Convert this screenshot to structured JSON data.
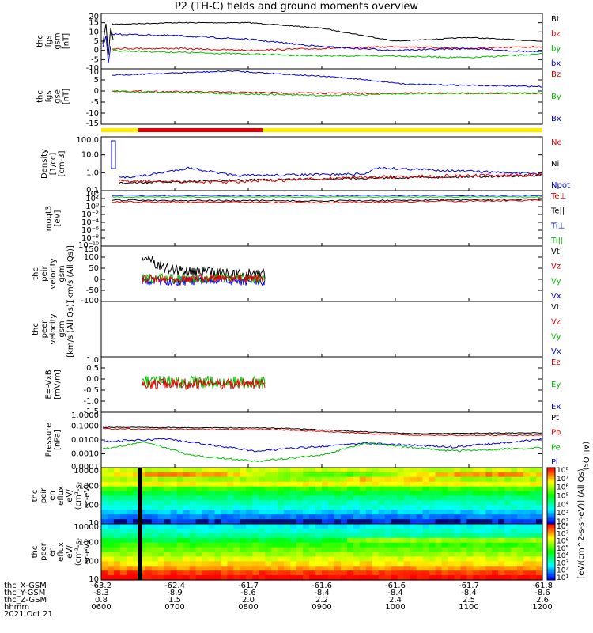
{
  "title": "P2 (TH-C) fields and ground moments overview",
  "colors": {
    "black": "#000000",
    "red": "#e00000",
    "green": "#00c000",
    "blue": "#0000e0"
  },
  "panels": [
    {
      "id": "fgs_gsm",
      "ylabel": [
        "thc",
        "fgs",
        "gsm",
        "[nT]"
      ],
      "ticks": [
        "20",
        "15",
        "10",
        "5",
        "0",
        "-5",
        "-10"
      ],
      "legend": [
        {
          "text": "Bt",
          "color": "#000000"
        },
        {
          "text": "bz",
          "color": "#e00000"
        },
        {
          "text": "by",
          "color": "#00c000"
        },
        {
          "text": "bx",
          "color": "#0000e0"
        }
      ]
    },
    {
      "id": "fgs_gse",
      "ylabel": [
        "thc",
        "fgs",
        "gse",
        "[nT]"
      ],
      "ticks": [
        "10",
        "5",
        "0",
        "-5",
        "-10",
        "-15"
      ],
      "legend": [
        {
          "text": "Bz",
          "color": "#e00000"
        },
        {
          "text": "By",
          "color": "#00c000"
        },
        {
          "text": "Bx",
          "color": "#0000e0"
        }
      ]
    },
    {
      "id": "density",
      "ylabel": [
        "Density",
        "[1/cc]",
        "[cm-3]"
      ],
      "ticks": [
        "100.0",
        "10.0",
        "1.0",
        "0.1"
      ],
      "legend": [
        {
          "text": "Ne",
          "color": "#e00000"
        },
        {
          "text": "Ni",
          "color": "#000000"
        },
        {
          "text": "Npot",
          "color": "#0000e0"
        }
      ]
    },
    {
      "id": "temperature",
      "ylabel": [
        "moqt3",
        "[eV]"
      ],
      "ticks": [
        "10⁴",
        "10²",
        "10⁰",
        "10⁻²",
        "10⁻⁴",
        "10⁻⁶",
        "10⁻⁸",
        "10⁻¹⁰"
      ],
      "legend": [
        {
          "text": "Te⊥",
          "color": "#e00000"
        },
        {
          "text": "Te||",
          "color": "#000000"
        },
        {
          "text": "Ti⊥",
          "color": "#0000e0"
        },
        {
          "text": "Ti||",
          "color": "#00c000"
        }
      ]
    },
    {
      "id": "peir_velocity",
      "ylabel": [
        "thc",
        "peir",
        "velocity",
        "gsm",
        "[km/s (All Qs)]"
      ],
      "ticks": [
        "150",
        "100",
        "50",
        "0",
        "-50",
        "-100"
      ],
      "legend": [
        {
          "text": "Vt",
          "color": "#000000"
        },
        {
          "text": "Vz",
          "color": "#e00000"
        },
        {
          "text": "Vy",
          "color": "#00c000"
        },
        {
          "text": "Vx",
          "color": "#0000e0"
        }
      ]
    },
    {
      "id": "peer_velocity",
      "ylabel": [
        "thc",
        "peer",
        "velocity",
        "gsm",
        "[km/s (All Qs)]"
      ],
      "ticks": [],
      "legend": [
        {
          "text": "Vt",
          "color": "#000000"
        },
        {
          "text": "Vz",
          "color": "#e00000"
        },
        {
          "text": "Vy",
          "color": "#00c000"
        },
        {
          "text": "Vx",
          "color": "#0000e0"
        }
      ]
    },
    {
      "id": "efield",
      "ylabel": [
        "E=-VxB",
        "[mV/m]"
      ],
      "ticks": [
        "1.0",
        "0.5",
        "0.0",
        "-0.5",
        "-1.0",
        "-1.5"
      ],
      "legend": [
        {
          "text": "Ez",
          "color": "#e00000"
        },
        {
          "text": "Ey",
          "color": "#00c000"
        },
        {
          "text": "Ex",
          "color": "#0000e0"
        }
      ]
    },
    {
      "id": "pressure",
      "ylabel": [
        "Pressure",
        "[nPa]"
      ],
      "ticks": [
        "1.0000",
        "0.1000",
        "0.0100",
        "0.0010",
        "0.0001"
      ],
      "legend": [
        {
          "text": "Pt",
          "color": "#000000"
        },
        {
          "text": "Pb",
          "color": "#e00000"
        },
        {
          "text": "Pe",
          "color": "#00c000"
        },
        {
          "text": "Pi",
          "color": "#0000e0"
        }
      ],
      "side_label": "(All Qs)"
    },
    {
      "id": "peir_eflux",
      "ylabel": [
        "thc",
        "peir",
        "en",
        "eflux",
        "eV/",
        "(cm²-s-",
        "sr-eV)"
      ],
      "ticks": [
        "10000",
        "1000",
        "100",
        "10"
      ]
    },
    {
      "id": "peer_eflux",
      "ylabel": [
        "thc",
        "peer",
        "en",
        "eflux",
        "eV/",
        "(cm²-s-",
        "sr-eV)"
      ],
      "ticks": [
        "10000",
        "1000",
        "100",
        "10"
      ]
    }
  ],
  "colorbar": {
    "top_ticks": [
      "10⁸",
      "10⁷",
      "10⁶",
      "10⁵",
      "10⁴",
      "10³",
      "10²"
    ],
    "bottom_ticks": [
      "10⁸",
      "10⁷",
      "10⁶",
      "10⁵",
      "10⁴",
      "10³",
      "10²",
      "10¹"
    ],
    "label": "[eV/(cm^2-s-sr-eV)] (All Qs)"
  },
  "chart_data": {
    "type": "line",
    "title": "P2 (TH-C) fields and ground moments overview",
    "x": [
      "0600",
      "0700",
      "0800",
      "0900",
      "1000",
      "1100",
      "1200"
    ],
    "series": [
      {
        "name": "Bt",
        "values": [
          14,
          15,
          15,
          12,
          5,
          7,
          5
        ]
      },
      {
        "name": "bz",
        "values": [
          1,
          1,
          0,
          1,
          2,
          1,
          2
        ]
      },
      {
        "name": "by",
        "values": [
          0,
          -1,
          -2,
          -3,
          -3,
          -4,
          -2
        ]
      },
      {
        "name": "bx",
        "values": [
          9,
          8,
          6,
          2,
          0,
          1,
          -1
        ]
      }
    ],
    "xlabel": "hhmm",
    "date": "2021 Oct 21",
    "ylim": [
      -10,
      20
    ],
    "ephemeris": {
      "labels": [
        "thc_X-GSM",
        "thc_Y-GSM",
        "thc_Z-GSM"
      ],
      "X": [
        "-63.2",
        "-62.4",
        "-61.7",
        "-61.6",
        "-61.6",
        "-61.7",
        "-61.8"
      ],
      "Y": [
        "-8.3",
        "-8.9",
        "-8.6",
        "-8.4",
        "-8.4",
        "-8.4",
        "-8.6"
      ],
      "Z": [
        "0.8",
        "1.5",
        "2.0",
        "2.2",
        "2.4",
        "2.5",
        "2.6"
      ]
    }
  }
}
